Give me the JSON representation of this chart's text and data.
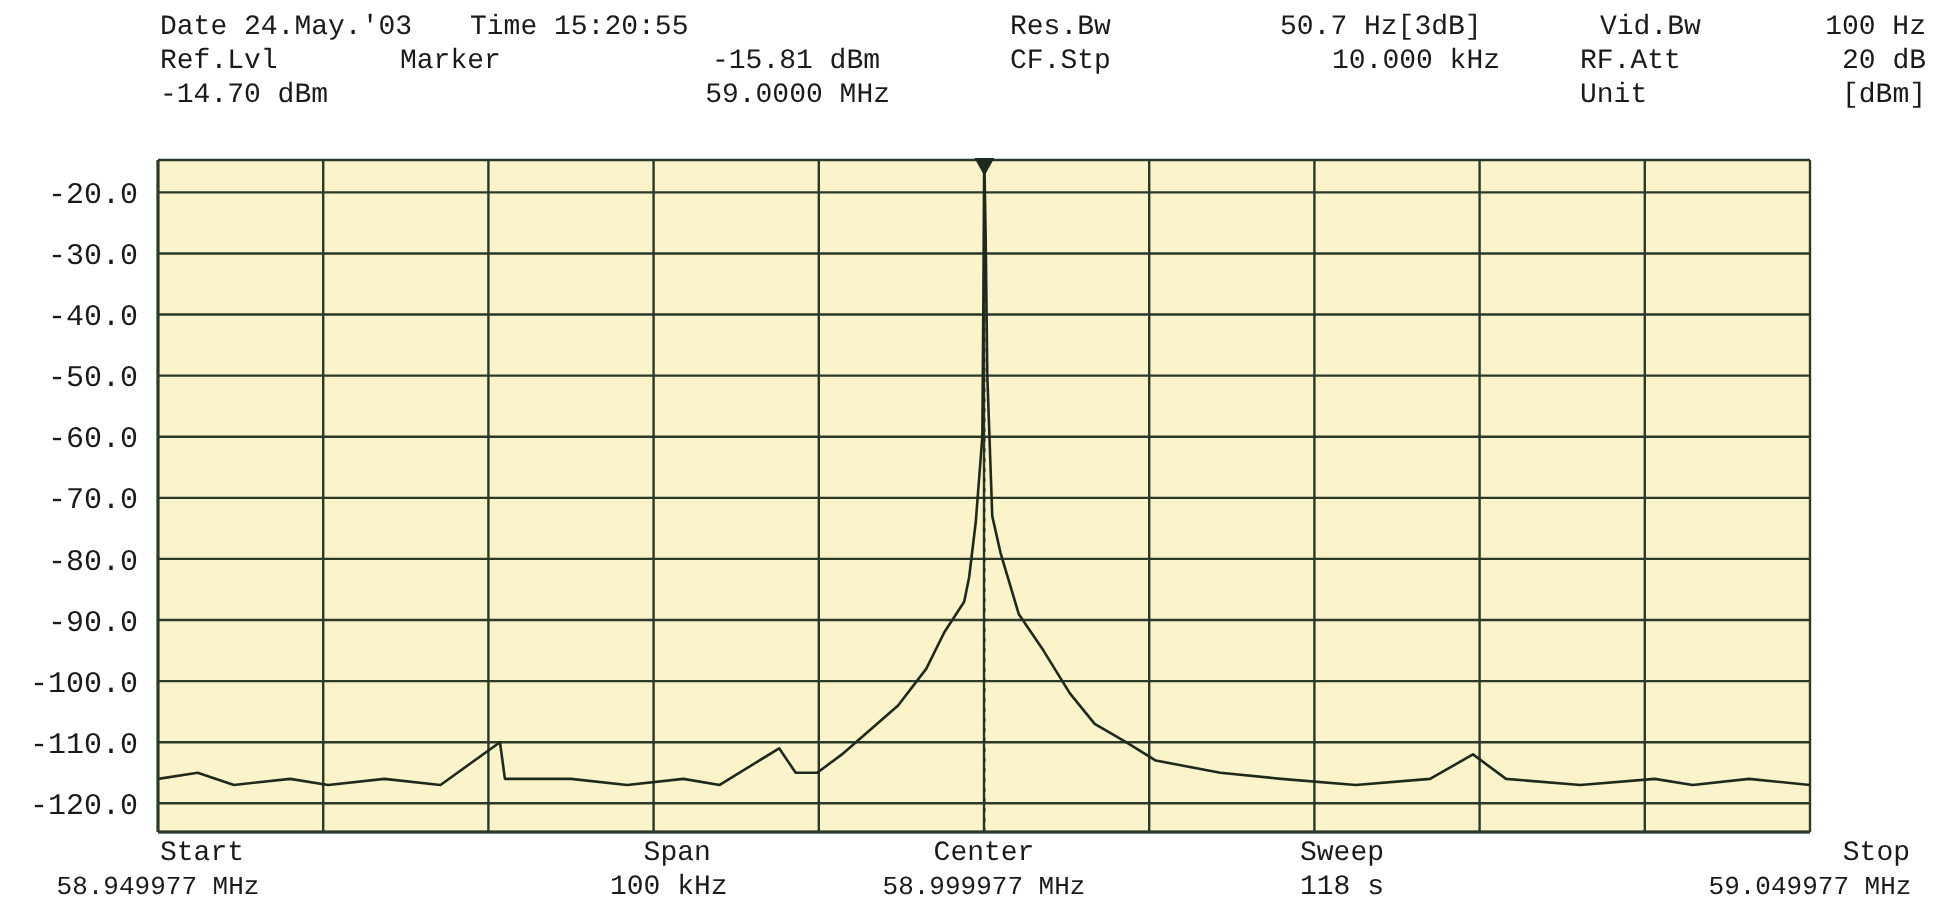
{
  "chart_data": {
    "type": "line",
    "x": [
      58.949977,
      58.952377,
      58.954577,
      58.957977,
      58.960277,
      58.963677,
      58.967077,
      58.970677,
      58.970977,
      58.974977,
      58.978377,
      58.981777,
      58.983977,
      58.987577,
      58.988577,
      58.989877,
      58.991377,
      58.993077,
      58.994777,
      58.996477,
      58.997577,
      58.998777,
      58.999077,
      58.999477,
      58.999877,
      59.0,
      59.000077,
      59.000177,
      59.000477,
      59.000977,
      59.002077,
      59.003577,
      59.005177,
      59.006677,
      59.008577,
      59.010377,
      59.014277,
      59.017977,
      59.022477,
      59.026977,
      59.029577,
      59.031577,
      59.036077,
      59.040577,
      59.042877,
      59.046277,
      59.049977
    ],
    "series": [
      {
        "color": "#1f2a1f",
        "values": [
          -116,
          -115,
          -117,
          -116,
          -117,
          -116,
          -117,
          -110,
          -116,
          -116,
          -117,
          -116,
          -117,
          -111,
          -115,
          -115,
          -112,
          -108,
          -104,
          -98,
          -92,
          -87,
          -83,
          -74,
          -60,
          -15.81,
          -27,
          -50,
          -73,
          -79,
          -89,
          -95,
          -102,
          -107,
          -110,
          -113,
          -115,
          -116,
          -117,
          -116,
          -112,
          -116,
          -117,
          -116,
          -117,
          -116,
          -117
        ]
      }
    ],
    "xlim": [
      58.949977,
      59.049977
    ],
    "xticks": [
      {
        "value": 58.949977,
        "label": "58.949977 MHz"
      },
      {
        "value": 58.959977,
        "label": null
      },
      {
        "value": 58.969977,
        "label": null
      },
      {
        "value": 58.979977,
        "label": null
      },
      {
        "value": 58.989977,
        "label": null
      },
      {
        "value": 58.999977,
        "label": "58.999977 MHz"
      },
      {
        "value": 59.009977,
        "label": null
      },
      {
        "value": 59.019977,
        "label": null
      },
      {
        "value": 59.029977,
        "label": null
      },
      {
        "value": 59.039977,
        "label": null
      },
      {
        "value": 59.049977,
        "label": "59.049977 MHz"
      }
    ],
    "ylim": [
      -124.7,
      -14.7
    ],
    "yticks": [
      {
        "value": -20,
        "label": "-20.0"
      },
      {
        "value": -30,
        "label": "-30.0"
      },
      {
        "value": -40,
        "label": "-40.0"
      },
      {
        "value": -50,
        "label": "-50.0"
      },
      {
        "value": -60,
        "label": "-60.0"
      },
      {
        "value": -70,
        "label": "-70.0"
      },
      {
        "value": -80,
        "label": "-80.0"
      },
      {
        "value": -90,
        "label": "-90.0"
      },
      {
        "value": -100,
        "label": "-100.0"
      },
      {
        "value": -110,
        "label": "-110.0"
      },
      {
        "value": -120,
        "label": "-120.0"
      }
    ],
    "grid": true,
    "marker": "none",
    "line_style": "solid",
    "ref_lines": [
      {
        "axis": "x",
        "value": 59.0,
        "label": null,
        "color": "#1f2a1f",
        "line_style": "dotted"
      }
    ],
    "annotations": [
      "Date 24.May.'03",
      "Time 15:20:55",
      "Ref.Lvl",
      "Marker",
      "-15.81 dBm",
      "-14.70 dBm",
      "59.0000 MHz",
      "Res.Bw",
      "50.7 Hz[3dB]",
      "Vid.Bw",
      "100 Hz",
      "CF.Stp",
      "10.000 kHz",
      "RF.Att",
      "20 dB",
      "Unit",
      "[dBm]",
      "Start",
      "Span\n100 kHz",
      "Center",
      "Sweep\n118 s",
      "Stop"
    ]
  }
}
